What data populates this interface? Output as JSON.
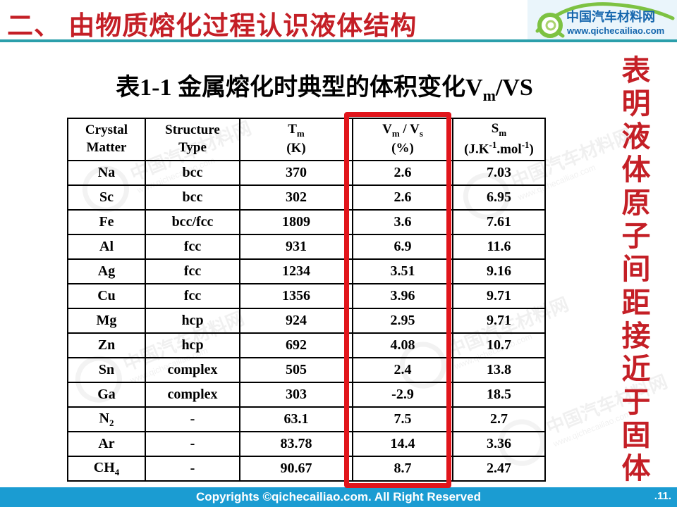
{
  "header": {
    "title": "二、 由物质熔化过程认识液体结构"
  },
  "logo": {
    "name": "中国汽车材料网",
    "url": "www.qichecailiao.com"
  },
  "table_title": "表1-1  金属熔化时典型的体积变化V~m~/VS",
  "table": {
    "header": [
      "Crystal\nMatter",
      "Structure\nType",
      "T~m~\n(K)",
      "V~m~ / V~s~\n(%)",
      "S~m~\n(J.K^-1^.mol^-1^)"
    ],
    "rows": [
      [
        "Na",
        "bcc",
        "370",
        "2.6",
        "7.03"
      ],
      [
        "Sc",
        "bcc",
        "302",
        "2.6",
        "6.95"
      ],
      [
        "Fe",
        "bcc/fcc",
        "1809",
        "3.6",
        "7.61"
      ],
      [
        "Al",
        "fcc",
        "931",
        "6.9",
        "11.6"
      ],
      [
        "Ag",
        "fcc",
        "1234",
        "3.51",
        "9.16"
      ],
      [
        "Cu",
        "fcc",
        "1356",
        "3.96",
        "9.71"
      ],
      [
        "Mg",
        "hcp",
        "924",
        "2.95",
        "9.71"
      ],
      [
        "Zn",
        "hcp",
        "692",
        "4.08",
        "10.7"
      ],
      [
        "Sn",
        "complex",
        "505",
        "2.4",
        "13.8"
      ],
      [
        "Ga",
        "complex",
        "303",
        "-2.9",
        "18.5"
      ],
      [
        "N~2~",
        "-",
        "63.1",
        "7.5",
        "2.7"
      ],
      [
        "Ar",
        "-",
        "83.78",
        "14.4",
        "3.36"
      ],
      [
        "CH~4~",
        "-",
        "90.67",
        "8.7",
        "2.47"
      ]
    ],
    "highlight_column_index": 3
  },
  "side_note": "表明液体原子间距接近于固体",
  "footer": {
    "copyright": "Copyrights ©qichecailiao.com. All Right Reserved",
    "page": ".11."
  },
  "watermark": {
    "name": "中国汽车材料网",
    "url": "www.qichecailiao.com"
  },
  "colors": {
    "accent_red": "#c41f26",
    "highlight_box_red": "#e1151b",
    "teal_rule": "#2b9fab",
    "footer_blue": "#1b9cd2",
    "logo_blue": "#1566ad",
    "logo_green": "#7dc242"
  }
}
